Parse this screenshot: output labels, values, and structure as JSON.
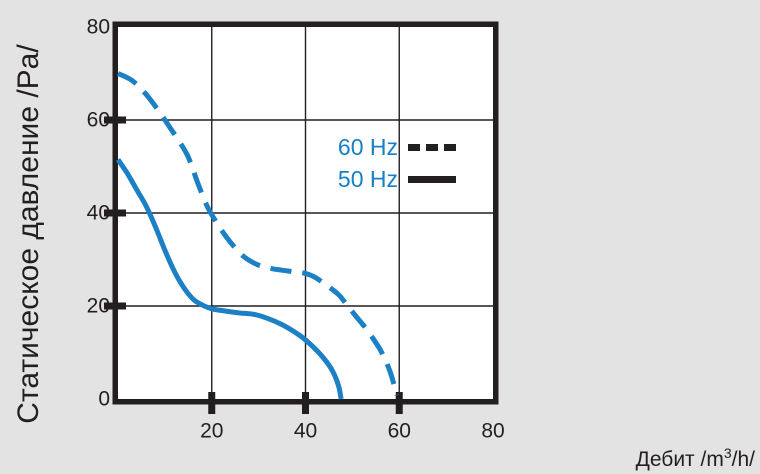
{
  "chart_data": {
    "type": "line",
    "title": "",
    "ylabel": "Статическое давление /Pa/",
    "xlabel": {
      "prefix": "Дебит /m",
      "sup": "3",
      "suffix": "/h/"
    },
    "xlim": [
      0,
      80
    ],
    "ylim": [
      0,
      80
    ],
    "grid": true,
    "x_axis": {
      "tick_labels": [
        20,
        40,
        60,
        80
      ],
      "grid": [
        20,
        40,
        60
      ],
      "tick_marks": [
        20,
        40,
        60
      ]
    },
    "y_axis": {
      "tick_labels": [
        80,
        60,
        40,
        20,
        0
      ],
      "grid": [
        60,
        40,
        20
      ],
      "tick_marks": [
        60,
        40,
        20
      ]
    },
    "legend_position": "inside-upper-right",
    "series": [
      {
        "name": "60 Hz",
        "line_style": "dashed",
        "points": [
          [
            0,
            70
          ],
          [
            3,
            68.5
          ],
          [
            6,
            65.5
          ],
          [
            9,
            61.5
          ],
          [
            11,
            58.5
          ],
          [
            13,
            55.5
          ],
          [
            15,
            52
          ],
          [
            17,
            46.5
          ],
          [
            19,
            41.5
          ],
          [
            21,
            38
          ],
          [
            23,
            35
          ],
          [
            25,
            32.5
          ],
          [
            27,
            30.5
          ],
          [
            29.5,
            29
          ],
          [
            32,
            28.2
          ],
          [
            35,
            27.7
          ],
          [
            38,
            27.3
          ],
          [
            40,
            27
          ],
          [
            42,
            26.2
          ],
          [
            44,
            24.8
          ],
          [
            47,
            22.5
          ],
          [
            49,
            20
          ],
          [
            51,
            17.5
          ],
          [
            53,
            15
          ],
          [
            56,
            10.5
          ],
          [
            58,
            6
          ],
          [
            59.5,
            0.8
          ]
        ]
      },
      {
        "name": "50 Hz",
        "line_style": "solid",
        "points": [
          [
            0,
            51.5
          ],
          [
            2,
            48.5
          ],
          [
            4,
            45
          ],
          [
            6,
            41.5
          ],
          [
            8,
            37
          ],
          [
            10,
            32
          ],
          [
            12,
            27.5
          ],
          [
            14,
            24
          ],
          [
            16,
            21.5
          ],
          [
            18,
            20.2
          ],
          [
            20,
            19.4
          ],
          [
            23,
            18.9
          ],
          [
            26,
            18.5
          ],
          [
            29,
            18.2
          ],
          [
            32,
            17.3
          ],
          [
            35,
            16
          ],
          [
            38,
            14.2
          ],
          [
            40,
            12.7
          ],
          [
            43,
            9.8
          ],
          [
            45.5,
            6.5
          ],
          [
            47,
            3
          ],
          [
            47.6,
            0
          ]
        ]
      }
    ],
    "colors": {
      "background": "#e3e3e3",
      "plot_background": "#ffffff",
      "axis": "#231f20",
      "curve": "#1b80c4",
      "legend_text": "#1580c5"
    }
  }
}
